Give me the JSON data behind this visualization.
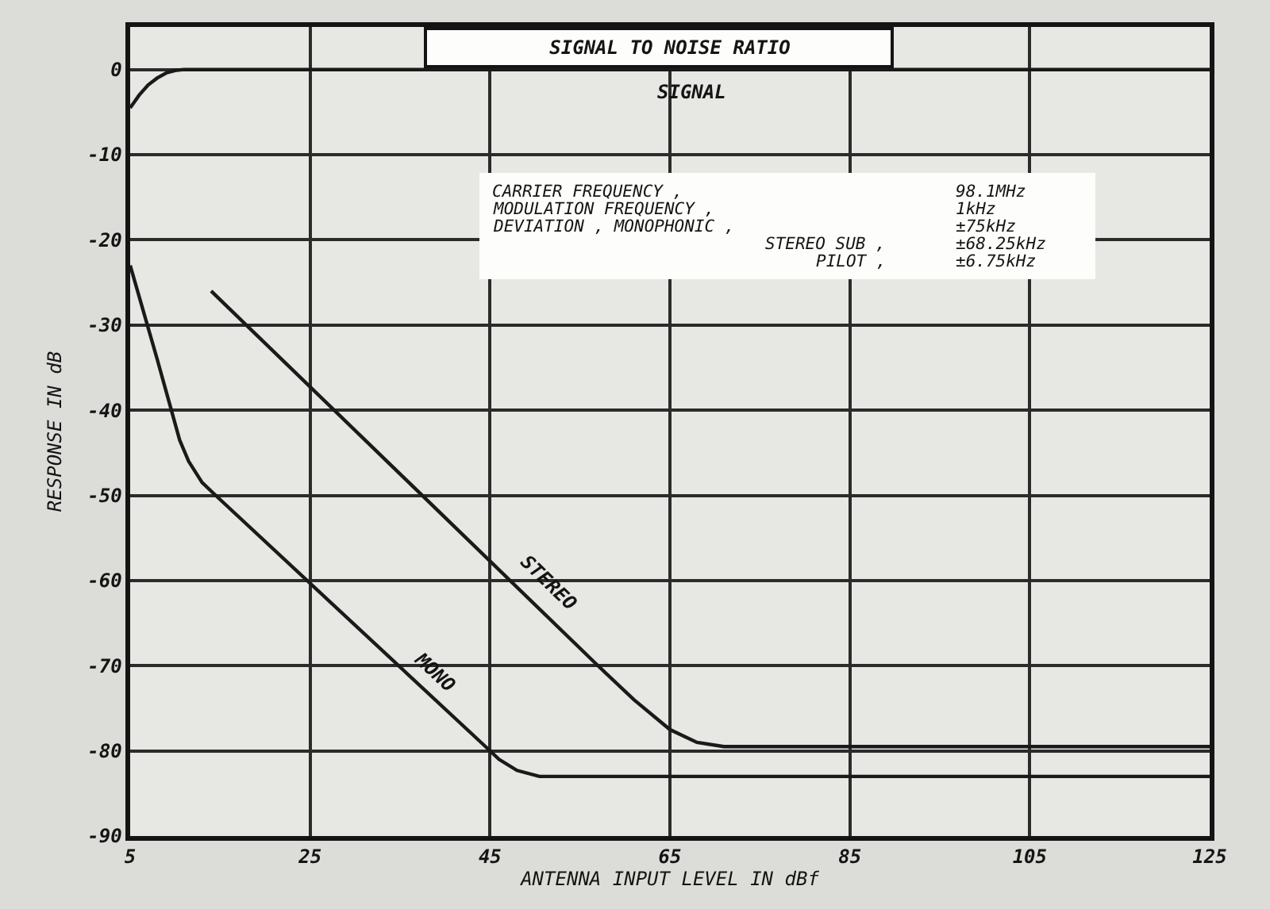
{
  "chart_data": {
    "type": "line",
    "title": "SIGNAL TO NOISE RATIO",
    "xlabel": "ANTENNA INPUT LEVEL IN dBf",
    "ylabel": "RESPONSE IN dB",
    "xlim": [
      5,
      125
    ],
    "xticks": [
      5,
      25,
      45,
      65,
      85,
      105,
      125
    ],
    "ylim": [
      -90,
      5
    ],
    "yticks": [
      0,
      -10,
      -20,
      -30,
      -40,
      -50,
      -60,
      -70,
      -80,
      -90
    ],
    "grid": true,
    "series": [
      {
        "name": "SIGNAL",
        "color": "#1a1a1a",
        "x": [
          5,
          6,
          7,
          8,
          9,
          10,
          11,
          125
        ],
        "values": [
          -4.5,
          -3,
          -1.8,
          -1,
          -0.4,
          -0.1,
          0,
          0
        ]
      },
      {
        "name": "STEREO",
        "color": "#1a1a1a",
        "x": [
          14,
          57,
          61,
          65,
          68,
          71,
          125
        ],
        "values": [
          -26,
          -70,
          -74,
          -77.5,
          -79,
          -79.5,
          -79.5
        ]
      },
      {
        "name": "MONO",
        "color": "#1a1a1a",
        "x": [
          5,
          8,
          10.5,
          11.5,
          13,
          14.5,
          44.5,
          46,
          48,
          50.5,
          125
        ],
        "values": [
          -23,
          -34,
          -43.5,
          -46,
          -48.5,
          -50,
          -79.5,
          -81,
          -82.3,
          -83,
          -83
        ]
      }
    ],
    "annotations": [
      "CARRIER FREQUENCY ,",
      "98.1MHz",
      "MODULATION FREQUENCY ,",
      "1kHz",
      "DEVIATION , MONOPHONIC ,",
      "±75kHz",
      "STEREO SUB ,",
      "±68.25kHz",
      "PILOT ,",
      "±6.75kHz"
    ]
  }
}
